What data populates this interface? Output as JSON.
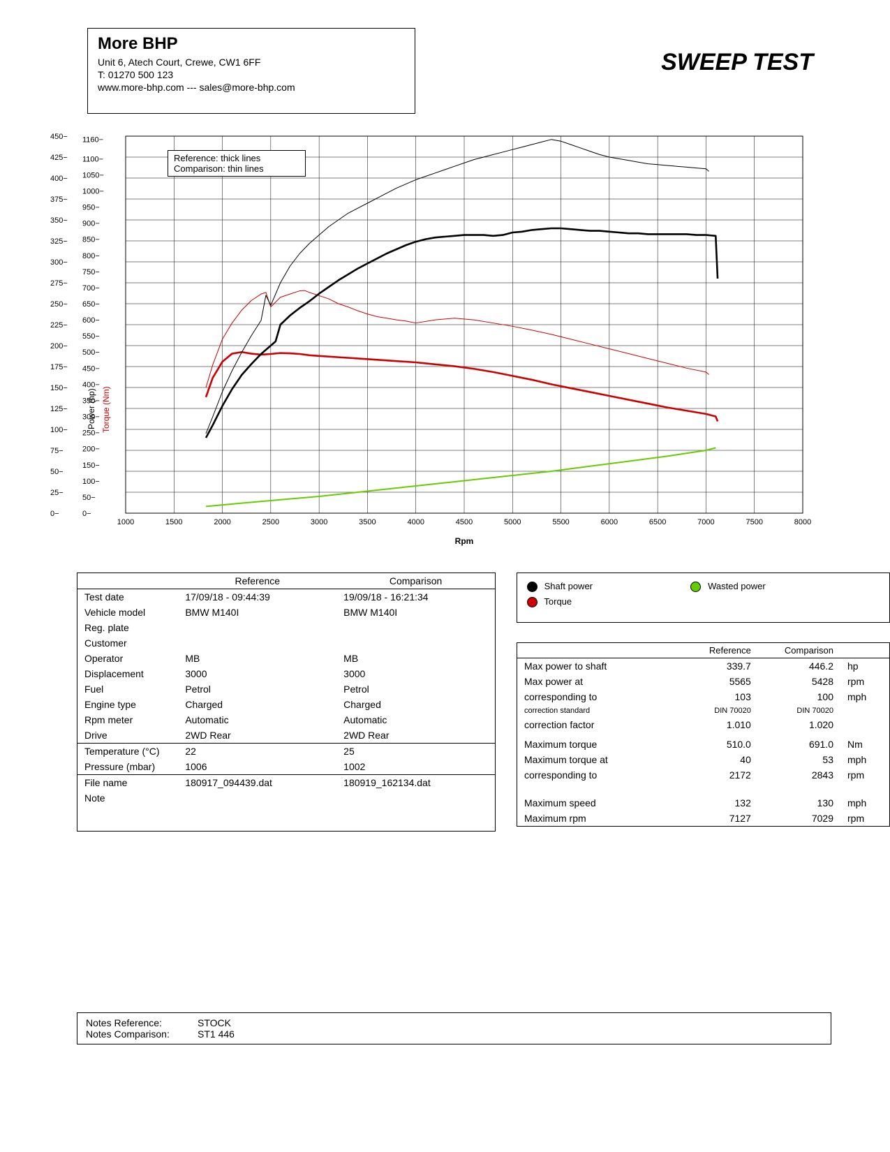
{
  "header": {
    "company": "More BHP",
    "addr": "Unit 6, Atech Court, Crewe, CW1 6FF",
    "tel": "T: 01270 500 123",
    "web": "www.more-bhp.com --- sales@more-bhp.com"
  },
  "title": "SWEEP TEST",
  "chart": {
    "bg": "#ffffff",
    "grid_color": "#000000",
    "border_color": "#000000",
    "x": {
      "label": "Rpm",
      "min": 1000,
      "max": 8000,
      "ticks": [
        1000,
        1500,
        2000,
        2500,
        3000,
        3500,
        4000,
        4500,
        5000,
        5500,
        6000,
        6500,
        7000,
        7500,
        8000
      ],
      "label_fontsize": 12
    },
    "y_power": {
      "label": "Power (hp)",
      "color": "#000000",
      "min": 0,
      "max": 450,
      "ticks": [
        0,
        25,
        50,
        75,
        100,
        125,
        150,
        175,
        200,
        225,
        250,
        275,
        300,
        325,
        350,
        375,
        400,
        425,
        450
      ],
      "fontsize": 11
    },
    "y_torque": {
      "label": "Torque (Nm)",
      "color": "#cc0000",
      "min": 0,
      "max": 1170,
      "ticks": [
        0,
        50,
        100,
        150,
        200,
        250,
        300,
        350,
        400,
        450,
        500,
        550,
        600,
        650,
        700,
        750,
        800,
        850,
        900,
        950,
        1000,
        1050,
        1100,
        1160
      ],
      "fontsize": 11
    },
    "legend_box": {
      "line1": "Reference: thick lines",
      "line2": "Comparison: thin lines"
    },
    "series_legend": {
      "shaft": "Shaft power",
      "torque": "Torque",
      "wasted": "Wasted power"
    },
    "colors": {
      "power_ref": "#000000",
      "power_cmp": "#000000",
      "torque_ref": "#cc0000",
      "torque_cmp": "#cc0000",
      "wasted": "#66cc00"
    },
    "line_widths": {
      "ref": 2.6,
      "cmp": 1.0,
      "wasted": 2.0
    },
    "power_ref": [
      [
        1830,
        90
      ],
      [
        1900,
        105
      ],
      [
        2000,
        128
      ],
      [
        2100,
        148
      ],
      [
        2200,
        165
      ],
      [
        2300,
        178
      ],
      [
        2400,
        190
      ],
      [
        2500,
        200
      ],
      [
        2550,
        205
      ],
      [
        2600,
        225
      ],
      [
        2700,
        236
      ],
      [
        2800,
        245
      ],
      [
        2900,
        253
      ],
      [
        3000,
        262
      ],
      [
        3100,
        270
      ],
      [
        3200,
        278
      ],
      [
        3300,
        285
      ],
      [
        3400,
        292
      ],
      [
        3500,
        298
      ],
      [
        3600,
        304
      ],
      [
        3700,
        310
      ],
      [
        3800,
        315
      ],
      [
        3900,
        320
      ],
      [
        4000,
        324
      ],
      [
        4100,
        327
      ],
      [
        4200,
        329
      ],
      [
        4300,
        330
      ],
      [
        4400,
        331
      ],
      [
        4500,
        332
      ],
      [
        4600,
        332
      ],
      [
        4700,
        332
      ],
      [
        4800,
        331
      ],
      [
        4900,
        332
      ],
      [
        5000,
        335
      ],
      [
        5100,
        336
      ],
      [
        5200,
        338
      ],
      [
        5300,
        339
      ],
      [
        5400,
        340
      ],
      [
        5500,
        340
      ],
      [
        5600,
        339
      ],
      [
        5700,
        338
      ],
      [
        5800,
        337
      ],
      [
        5900,
        337
      ],
      [
        6000,
        336
      ],
      [
        6100,
        335
      ],
      [
        6200,
        334
      ],
      [
        6300,
        334
      ],
      [
        6400,
        333
      ],
      [
        6500,
        333
      ],
      [
        6600,
        333
      ],
      [
        6700,
        333
      ],
      [
        6800,
        333
      ],
      [
        6900,
        332
      ],
      [
        7000,
        332
      ],
      [
        7100,
        331
      ],
      [
        7120,
        280
      ]
    ],
    "power_cmp": [
      [
        1830,
        95
      ],
      [
        1900,
        115
      ],
      [
        2000,
        145
      ],
      [
        2100,
        170
      ],
      [
        2200,
        192
      ],
      [
        2300,
        212
      ],
      [
        2400,
        230
      ],
      [
        2450,
        260
      ],
      [
        2500,
        248
      ],
      [
        2600,
        275
      ],
      [
        2700,
        295
      ],
      [
        2800,
        310
      ],
      [
        2900,
        322
      ],
      [
        3000,
        332
      ],
      [
        3100,
        342
      ],
      [
        3200,
        350
      ],
      [
        3300,
        358
      ],
      [
        3400,
        364
      ],
      [
        3500,
        370
      ],
      [
        3600,
        376
      ],
      [
        3700,
        382
      ],
      [
        3800,
        388
      ],
      [
        3900,
        393
      ],
      [
        4000,
        398
      ],
      [
        4100,
        402
      ],
      [
        4200,
        406
      ],
      [
        4300,
        410
      ],
      [
        4400,
        414
      ],
      [
        4500,
        418
      ],
      [
        4600,
        422
      ],
      [
        4700,
        425
      ],
      [
        4800,
        428
      ],
      [
        4900,
        431
      ],
      [
        5000,
        434
      ],
      [
        5100,
        437
      ],
      [
        5200,
        440
      ],
      [
        5300,
        443
      ],
      [
        5400,
        446
      ],
      [
        5500,
        444
      ],
      [
        5600,
        440
      ],
      [
        5700,
        436
      ],
      [
        5800,
        432
      ],
      [
        5900,
        428
      ],
      [
        6000,
        425
      ],
      [
        6100,
        423
      ],
      [
        6200,
        421
      ],
      [
        6300,
        419
      ],
      [
        6400,
        417
      ],
      [
        6500,
        416
      ],
      [
        6600,
        415
      ],
      [
        6700,
        414
      ],
      [
        6800,
        413
      ],
      [
        6900,
        412
      ],
      [
        7000,
        411
      ],
      [
        7030,
        408
      ]
    ],
    "torque_ref": [
      [
        1830,
        360
      ],
      [
        1900,
        420
      ],
      [
        2000,
        470
      ],
      [
        2100,
        495
      ],
      [
        2200,
        500
      ],
      [
        2300,
        495
      ],
      [
        2400,
        492
      ],
      [
        2500,
        494
      ],
      [
        2600,
        497
      ],
      [
        2700,
        496
      ],
      [
        2800,
        494
      ],
      [
        2900,
        490
      ],
      [
        3000,
        488
      ],
      [
        3200,
        484
      ],
      [
        3400,
        480
      ],
      [
        3600,
        476
      ],
      [
        3800,
        472
      ],
      [
        4000,
        468
      ],
      [
        4200,
        462
      ],
      [
        4400,
        456
      ],
      [
        4600,
        448
      ],
      [
        4800,
        438
      ],
      [
        5000,
        426
      ],
      [
        5200,
        414
      ],
      [
        5400,
        400
      ],
      [
        5600,
        388
      ],
      [
        5800,
        376
      ],
      [
        6000,
        364
      ],
      [
        6200,
        352
      ],
      [
        6400,
        340
      ],
      [
        6600,
        328
      ],
      [
        6800,
        318
      ],
      [
        7000,
        308
      ],
      [
        7100,
        300
      ],
      [
        7120,
        285
      ]
    ],
    "torque_cmp": [
      [
        1830,
        390
      ],
      [
        1900,
        460
      ],
      [
        2000,
        540
      ],
      [
        2100,
        590
      ],
      [
        2200,
        630
      ],
      [
        2300,
        660
      ],
      [
        2400,
        680
      ],
      [
        2450,
        685
      ],
      [
        2500,
        640
      ],
      [
        2600,
        670
      ],
      [
        2700,
        680
      ],
      [
        2800,
        690
      ],
      [
        2850,
        691
      ],
      [
        2900,
        685
      ],
      [
        3000,
        675
      ],
      [
        3100,
        665
      ],
      [
        3200,
        650
      ],
      [
        3300,
        640
      ],
      [
        3400,
        628
      ],
      [
        3500,
        618
      ],
      [
        3600,
        610
      ],
      [
        3700,
        605
      ],
      [
        3800,
        600
      ],
      [
        3900,
        596
      ],
      [
        4000,
        590
      ],
      [
        4200,
        600
      ],
      [
        4400,
        605
      ],
      [
        4600,
        600
      ],
      [
        4800,
        590
      ],
      [
        5000,
        580
      ],
      [
        5200,
        568
      ],
      [
        5400,
        555
      ],
      [
        5600,
        540
      ],
      [
        5800,
        525
      ],
      [
        6000,
        510
      ],
      [
        6200,
        495
      ],
      [
        6400,
        480
      ],
      [
        6600,
        465
      ],
      [
        6800,
        450
      ],
      [
        7000,
        438
      ],
      [
        7030,
        430
      ]
    ],
    "wasted": [
      [
        1830,
        8
      ],
      [
        2200,
        12
      ],
      [
        2600,
        16
      ],
      [
        3000,
        20
      ],
      [
        3400,
        25
      ],
      [
        3800,
        30
      ],
      [
        4200,
        35
      ],
      [
        4600,
        40
      ],
      [
        5000,
        45
      ],
      [
        5400,
        50
      ],
      [
        5800,
        56
      ],
      [
        6200,
        62
      ],
      [
        6600,
        68
      ],
      [
        7000,
        75
      ],
      [
        7100,
        78
      ]
    ]
  },
  "info_table": {
    "cols": [
      "",
      "Reference",
      "Comparison"
    ],
    "rows1": [
      [
        "Test date",
        "17/09/18 - 09:44:39",
        "19/09/18 - 16:21:34"
      ],
      [
        "Vehicle model",
        "BMW M140I",
        "BMW M140I"
      ],
      [
        "Reg. plate",
        "",
        ""
      ],
      [
        "Customer",
        "",
        ""
      ],
      [
        "Operator",
        "MB",
        "MB"
      ],
      [
        "Displacement",
        "3000",
        "3000"
      ],
      [
        "Fuel",
        "Petrol",
        "Petrol"
      ],
      [
        "Engine type",
        "Charged",
        "Charged"
      ],
      [
        "Rpm meter",
        "Automatic",
        "Automatic"
      ],
      [
        "Drive",
        "2WD Rear",
        "2WD Rear"
      ]
    ],
    "rows2": [
      [
        "Temperature (°C)",
        "22",
        "25"
      ],
      [
        "Pressure (mbar)",
        "1006",
        "1002"
      ]
    ],
    "rows3": [
      [
        "File name",
        "180917_094439.dat",
        "180919_162134.dat"
      ],
      [
        "Note",
        "",
        ""
      ]
    ]
  },
  "results": {
    "hdr": [
      "",
      "Reference",
      "Comparison",
      ""
    ],
    "rows": [
      [
        "Max power to shaft",
        "339.7",
        "446.2",
        "hp"
      ],
      [
        "Max power at",
        "5565",
        "5428",
        "rpm"
      ],
      [
        "corresponding to",
        "103",
        "100",
        "mph"
      ],
      [
        "correction standard",
        "DIN 70020",
        "DIN 70020",
        ""
      ],
      [
        "correction factor",
        "1.010",
        "1.020",
        ""
      ],
      [
        "",
        "",
        "",
        ""
      ],
      [
        "Maximum torque",
        "510.0",
        "691.0",
        "Nm"
      ],
      [
        "Maximum torque at",
        "40",
        "53",
        "mph"
      ],
      [
        "corresponding to",
        "2172",
        "2843",
        "rpm"
      ],
      [
        "",
        "",
        "",
        ""
      ],
      [
        "",
        "",
        "",
        ""
      ],
      [
        "",
        "",
        "",
        ""
      ],
      [
        "Maximum speed",
        "132",
        "130",
        "mph"
      ],
      [
        "Maximum rpm",
        "7127",
        "7029",
        "rpm"
      ]
    ]
  },
  "notes": {
    "ref_lbl": "Notes Reference:",
    "ref": "STOCK",
    "cmp_lbl": "Notes Comparison:",
    "cmp": "ST1 446"
  }
}
